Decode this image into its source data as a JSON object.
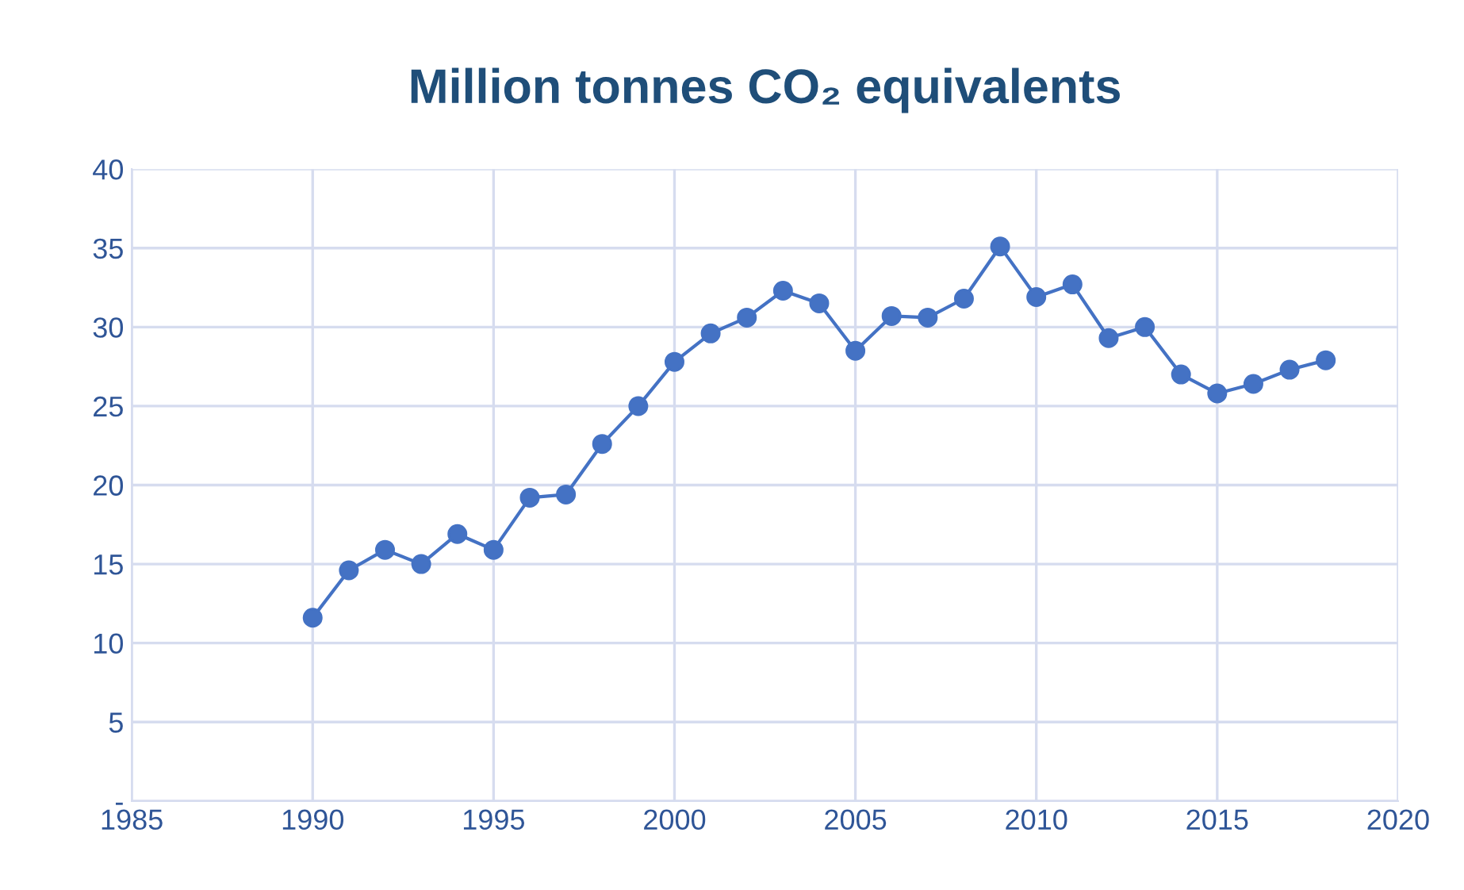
{
  "chart_data": {
    "type": "line",
    "title": "Million tonnes CO₂ equivalents",
    "x": [
      1990,
      1991,
      1992,
      1993,
      1994,
      1995,
      1996,
      1997,
      1998,
      1999,
      2000,
      2001,
      2002,
      2003,
      2004,
      2005,
      2006,
      2007,
      2008,
      2009,
      2010,
      2011,
      2012,
      2013,
      2014,
      2015,
      2016,
      2017,
      2018
    ],
    "series": [
      {
        "color": "#4472c4",
        "values": [
          11.6,
          14.6,
          15.9,
          15.0,
          16.9,
          15.9,
          19.2,
          19.4,
          22.6,
          25.0,
          27.8,
          29.6,
          30.6,
          32.3,
          31.5,
          28.5,
          30.7,
          30.6,
          31.8,
          35.1,
          31.9,
          32.7,
          29.3,
          30.0,
          27.0,
          25.8,
          26.4,
          27.3,
          27.9
        ]
      }
    ],
    "xlim": [
      1985,
      2020
    ],
    "xticks": [
      1985,
      1990,
      1995,
      2000,
      2005,
      2010,
      2015,
      2020
    ],
    "ylim": [
      0,
      40
    ],
    "yticks": [
      {
        "value": 0,
        "label": "-"
      },
      5,
      10,
      15,
      20,
      25,
      30,
      35,
      40
    ],
    "grid": true,
    "marker": "circle",
    "line_style": "solid",
    "legend": false
  }
}
